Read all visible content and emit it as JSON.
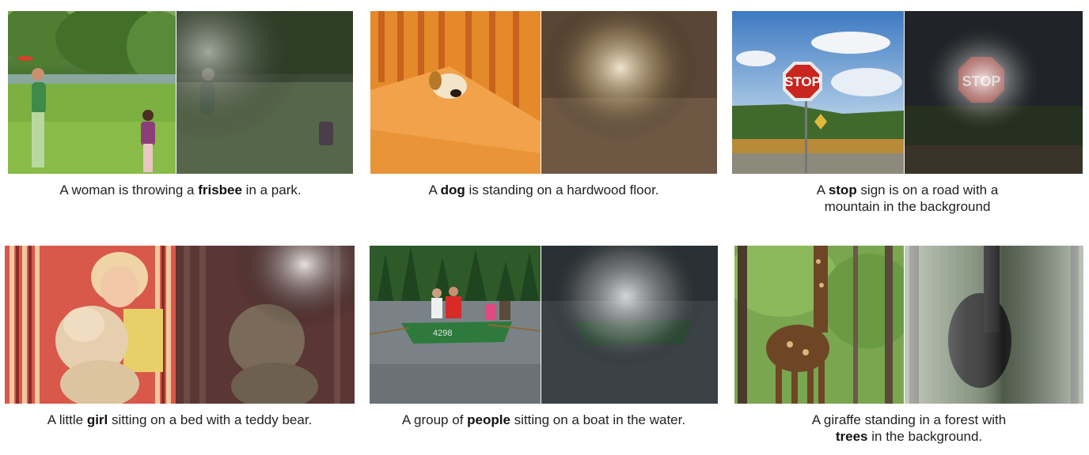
{
  "figure": {
    "items": [
      {
        "id": "frisbee",
        "caption_pre": "A woman is throwing a ",
        "caption_bold": "frisbee",
        "caption_post": " in a park.",
        "caption_line2_pre": "",
        "caption_line2_bold": "",
        "caption_line2_post": ""
      },
      {
        "id": "dog",
        "caption_pre": "A ",
        "caption_bold": "dog",
        "caption_post": " is standing on a hardwood floor.",
        "caption_line2_pre": "",
        "caption_line2_bold": "",
        "caption_line2_post": ""
      },
      {
        "id": "stop",
        "caption_pre": "A ",
        "caption_bold": "stop",
        "caption_post": " sign is on a road with a",
        "caption_line2_pre": "mountain in the background",
        "caption_line2_bold": "",
        "caption_line2_post": ""
      },
      {
        "id": "girl",
        "caption_pre": "A little ",
        "caption_bold": "girl",
        "caption_post": " sitting on a bed with a teddy bear.",
        "caption_line2_pre": "",
        "caption_line2_bold": "",
        "caption_line2_post": ""
      },
      {
        "id": "people",
        "caption_pre": "A group of ",
        "caption_bold": "people",
        "caption_post": " sitting on a boat in the water.",
        "caption_line2_pre": "",
        "caption_line2_bold": "",
        "caption_line2_post": ""
      },
      {
        "id": "trees",
        "caption_pre": "A giraffe standing in a forest with",
        "caption_bold": "",
        "caption_post": "",
        "caption_line2_pre": "",
        "caption_line2_bold": "trees",
        "caption_line2_post": " in the background."
      }
    ],
    "photo_texts": {
      "stop_sign_text": "STOP",
      "boat_number": "4298"
    }
  }
}
